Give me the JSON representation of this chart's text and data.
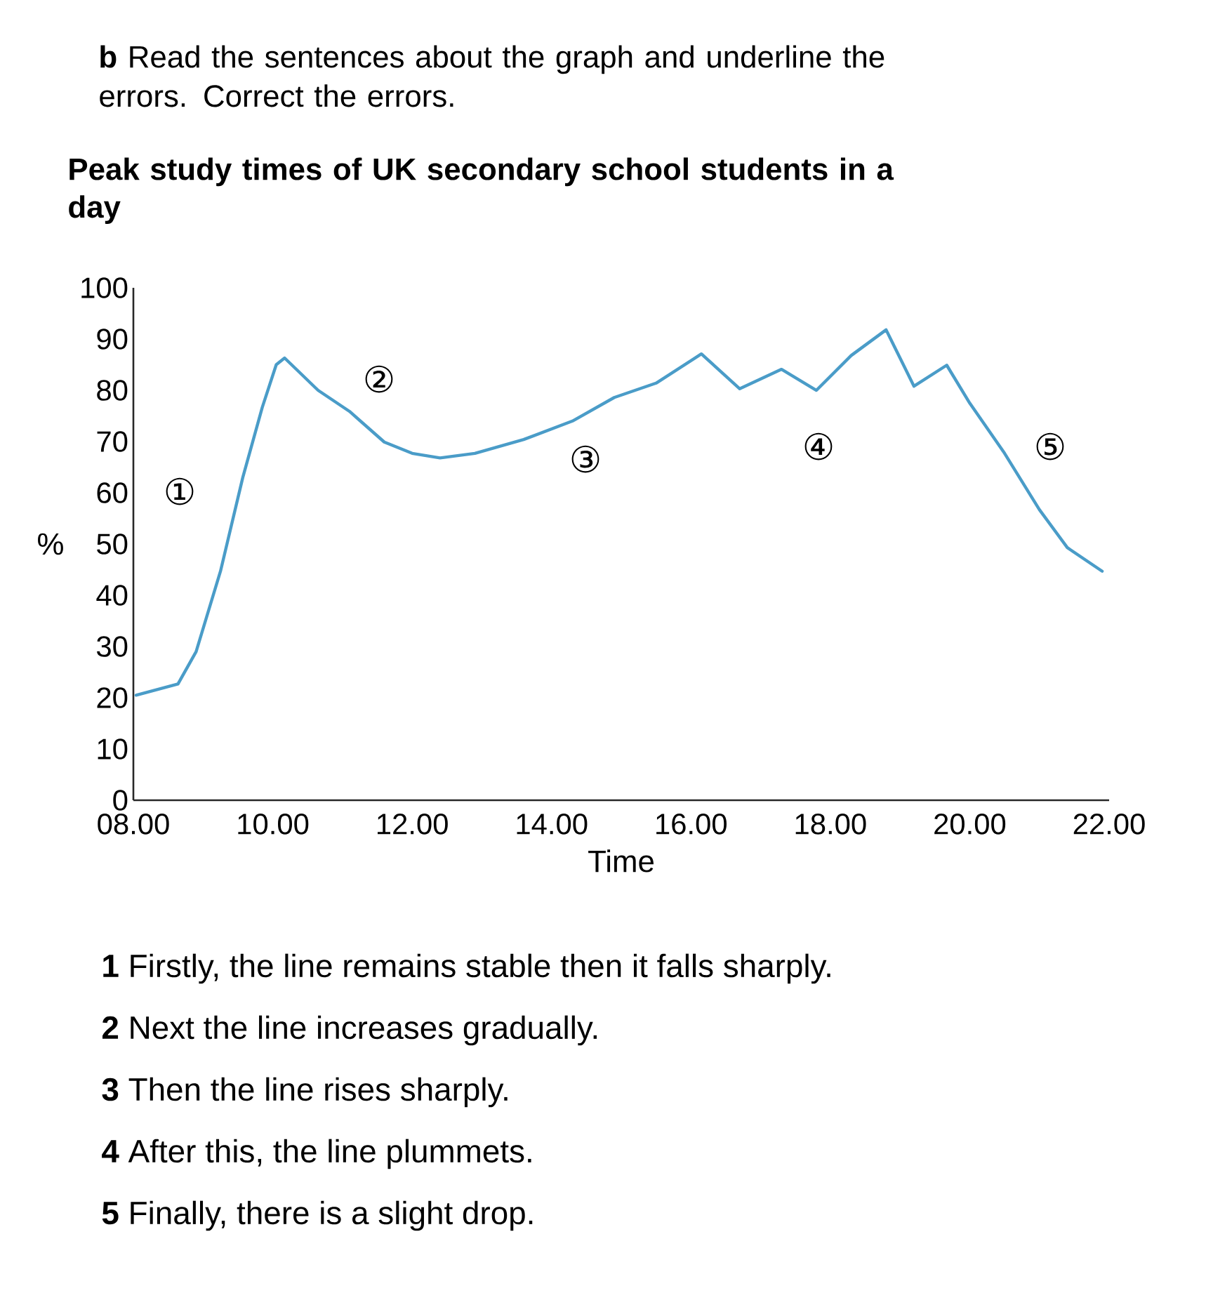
{
  "chart_data": {
    "type": "line",
    "title": "Peak study times of UK secondary school students in a day",
    "xlabel": "Time",
    "ylabel": "%",
    "x": [
      8.04,
      8.64,
      8.9,
      9.25,
      9.57,
      9.85,
      10.05,
      10.17,
      10.65,
      11.1,
      11.6,
      12.0,
      12.4,
      12.9,
      13.6,
      14.3,
      14.9,
      15.5,
      16.15,
      16.7,
      17.3,
      17.8,
      18.3,
      18.8,
      19.2,
      19.67,
      20.0,
      20.5,
      21.0,
      21.4,
      21.9
    ],
    "series": [
      {
        "color": "#4a9cc8",
        "values": [
          20.5,
          22.7,
          29,
          44.7,
          63,
          76.7,
          85,
          86.3,
          80,
          75.9,
          69.9,
          67.7,
          66.8,
          67.7,
          70.4,
          74,
          78.6,
          81.4,
          87.1,
          80.3,
          84.1,
          80,
          86.8,
          91.8,
          80.8,
          84.9,
          77.5,
          67.7,
          56.7,
          49.3,
          44.7
        ]
      }
    ],
    "xlim": [
      8,
      22
    ],
    "ylim": [
      0,
      100
    ],
    "xticks": [
      {
        "value": 8,
        "label": "08.00"
      },
      {
        "value": 10,
        "label": "10.00"
      },
      {
        "value": 12,
        "label": "12.00"
      },
      {
        "value": 14,
        "label": "14.00"
      },
      {
        "value": 16,
        "label": "16.00"
      },
      {
        "value": 18,
        "label": "18.00"
      },
      {
        "value": 20,
        "label": "20.00"
      },
      {
        "value": 22,
        "label": "22.00"
      }
    ],
    "yticks": [
      0,
      10,
      20,
      30,
      40,
      50,
      60,
      70,
      80,
      90,
      100
    ],
    "line_style": "solid",
    "annotations": [
      "**b** Read the sentences about the graph and underline the errors. Correct the errors.",
      "①",
      "②",
      "③",
      "④",
      "⑤",
      "**1** Firstly, the line remains stable then it falls sharply.",
      "**2** Next the line increases gradually.",
      "**3** Then the line rises sharply.",
      "**4** After this, the line plummets.",
      "**5** Finally, there is a slight drop."
    ]
  }
}
